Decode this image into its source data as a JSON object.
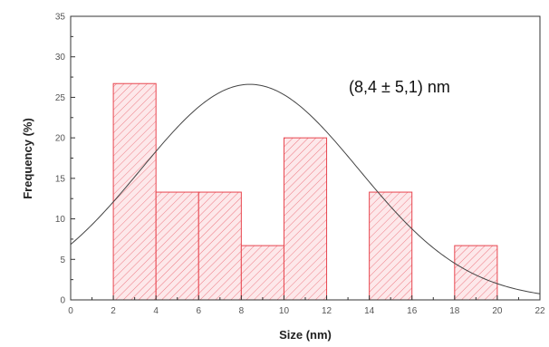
{
  "chart_data": {
    "type": "bar",
    "title": "",
    "xlabel": "Size (nm)",
    "ylabel": "Frequency (%)",
    "xlim": [
      0,
      22
    ],
    "ylim": [
      0,
      35
    ],
    "x_ticks": [
      0,
      2,
      4,
      6,
      8,
      10,
      12,
      14,
      16,
      18,
      20,
      22
    ],
    "y_ticks": [
      0,
      5,
      10,
      15,
      20,
      25,
      30,
      35
    ],
    "bins": [
      {
        "start": 2,
        "end": 4,
        "value": 26.7
      },
      {
        "start": 4,
        "end": 6,
        "value": 13.3
      },
      {
        "start": 6,
        "end": 8,
        "value": 13.3
      },
      {
        "start": 8,
        "end": 10,
        "value": 6.7
      },
      {
        "start": 10,
        "end": 12,
        "value": 20.0
      },
      {
        "start": 14,
        "end": 16,
        "value": 13.3
      },
      {
        "start": 18,
        "end": 20,
        "value": 6.7
      }
    ],
    "fit_curve": {
      "type": "gaussian",
      "mean": 8.4,
      "sd": 5.1,
      "peak": 26.6
    },
    "annotation": "(8,4 ± 5,1) nm",
    "grid": false,
    "colors": {
      "bar_stroke": "#e8464f",
      "bar_fill": "#fde8ea",
      "hatch": "#ee7b84",
      "curve": "#444444",
      "axis": "#333333"
    }
  }
}
